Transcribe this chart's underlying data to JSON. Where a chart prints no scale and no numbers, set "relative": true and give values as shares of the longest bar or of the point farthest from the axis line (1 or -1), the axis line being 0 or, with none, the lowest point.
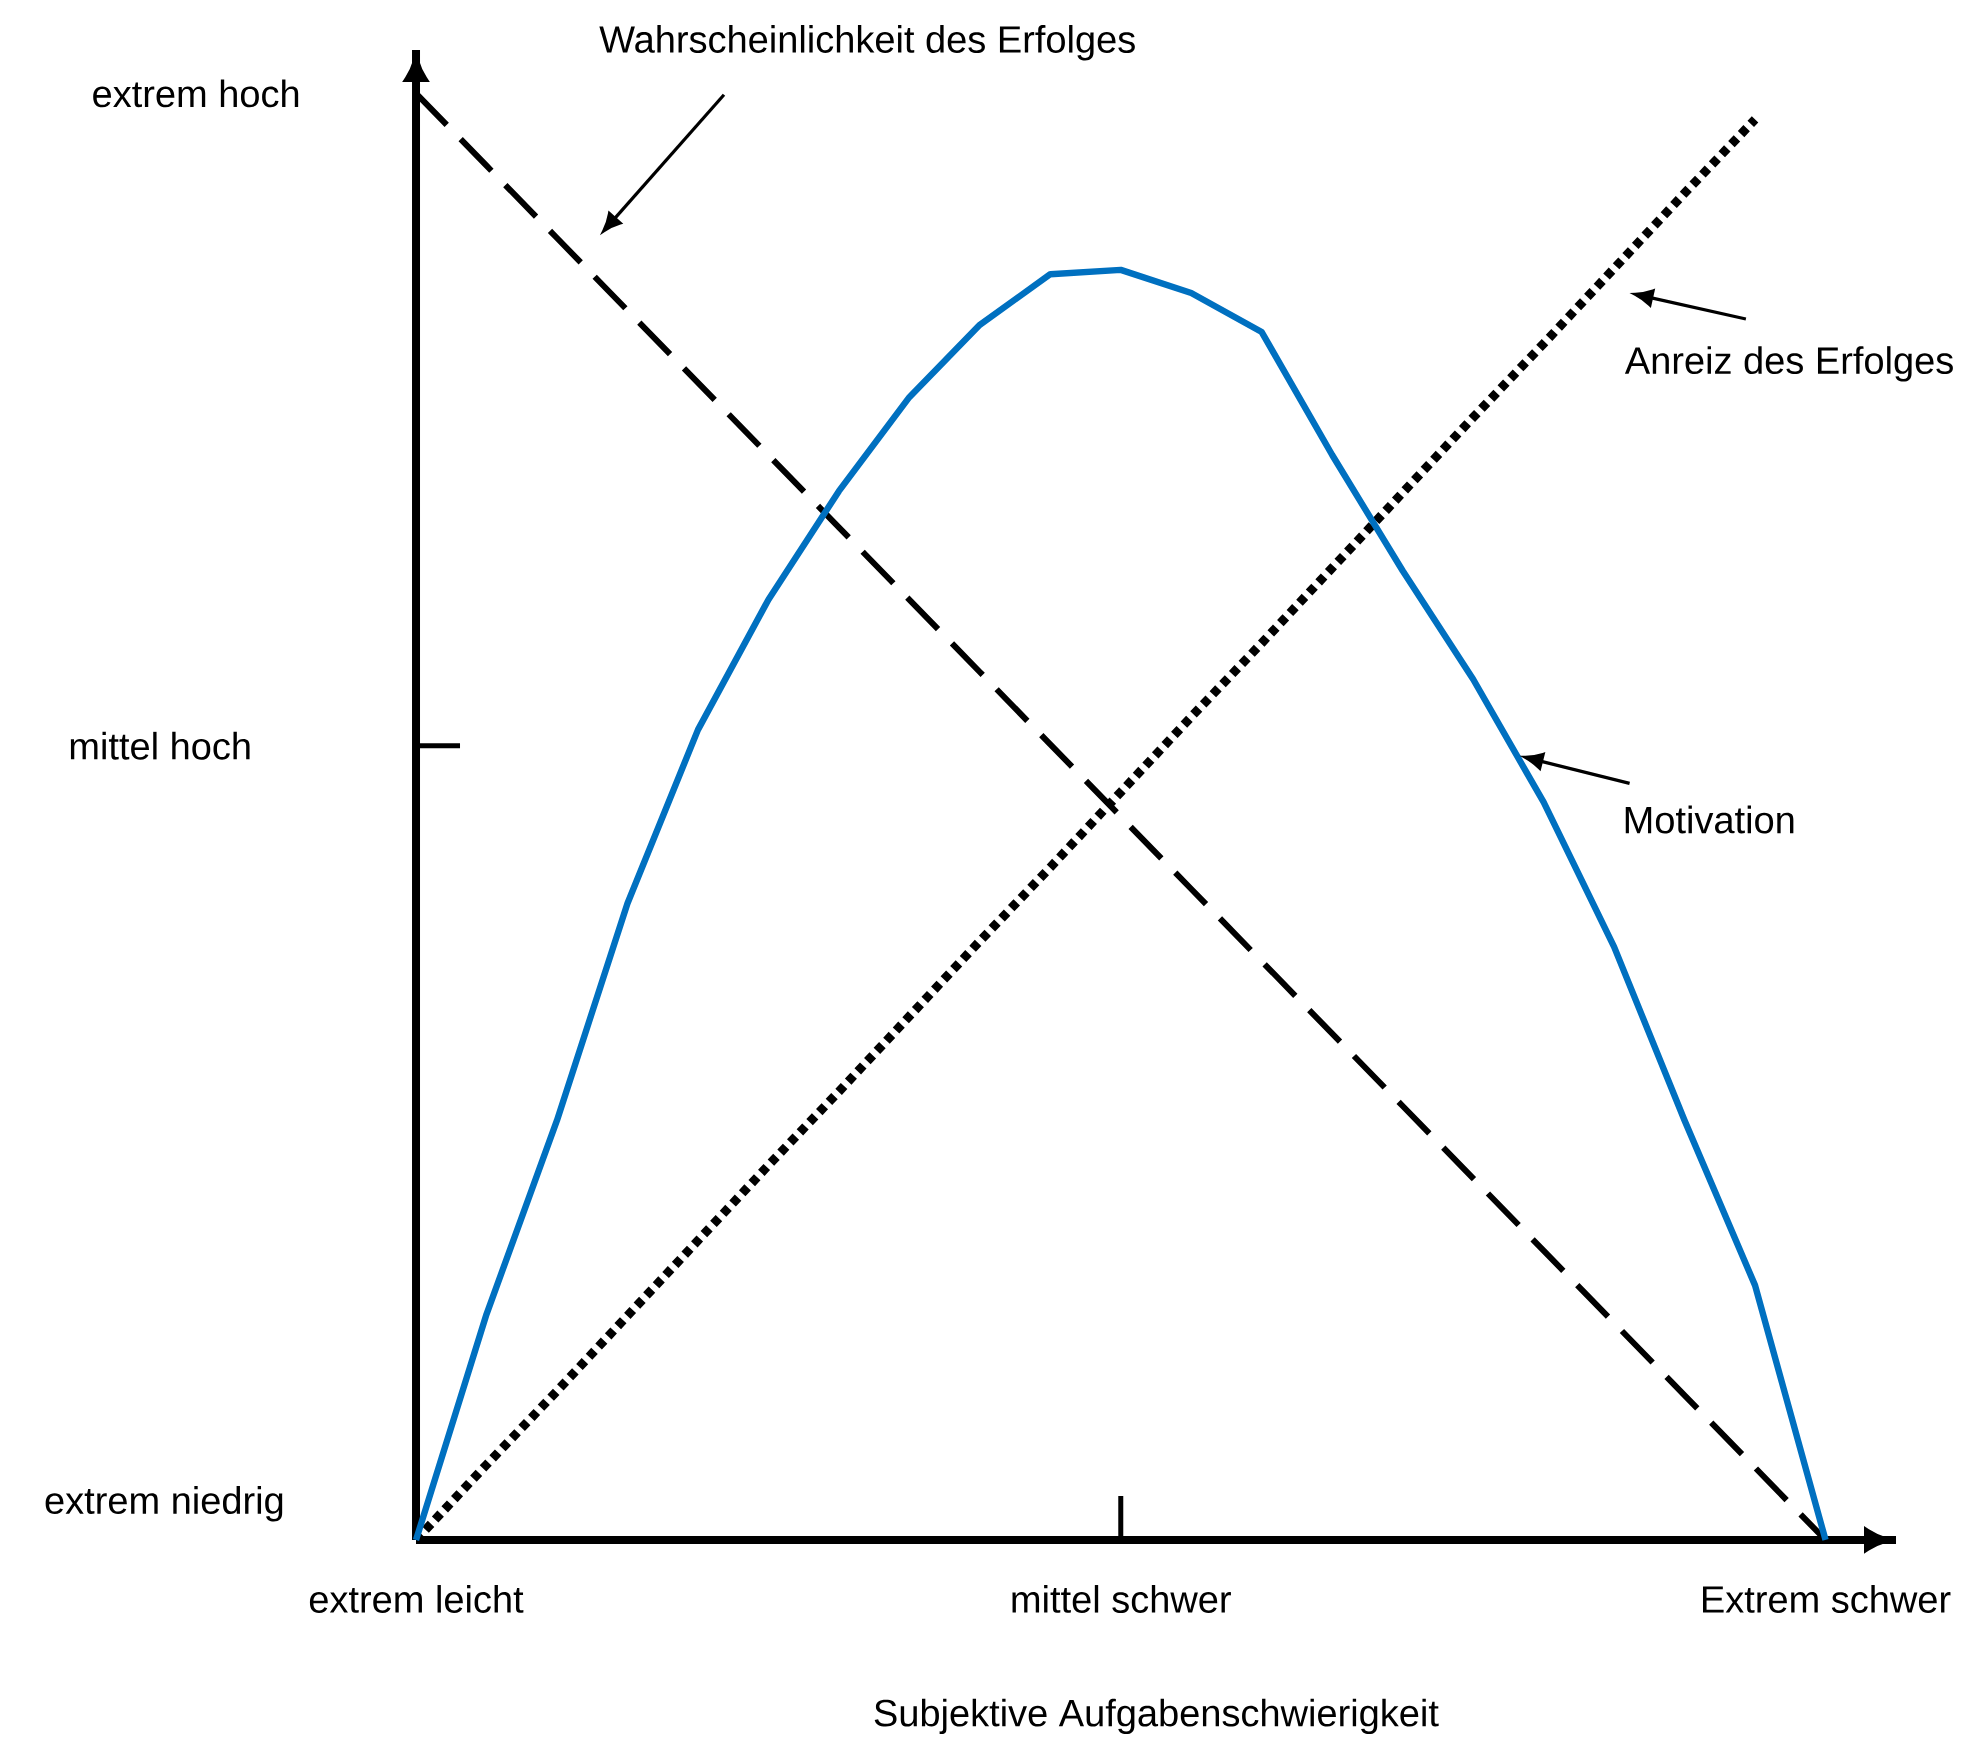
{
  "chart_data": {
    "type": "line",
    "relative": true,
    "xlabel": "Subjektive Aufgabenschwierigkeit",
    "categories": [
      "extrem leicht",
      null,
      null,
      null,
      null,
      null,
      null,
      null,
      null,
      null,
      "mittel schwer",
      null,
      null,
      null,
      null,
      null,
      null,
      null,
      null,
      null,
      "Extrem schwer"
    ],
    "marker": "none",
    "series": [
      {
        "color": "#000000",
        "line_style": "dashed",
        "values": [
          1,
          0.95,
          0.9,
          0.85,
          0.8,
          0.75,
          0.7,
          0.65,
          0.6,
          0.55,
          0.5,
          0.45,
          0.4,
          0.35,
          0.3,
          0.25,
          0.2,
          0.15,
          0.1,
          0.05,
          0
        ]
      },
      {
        "color": "#000000",
        "line_style": "dotted",
        "values": [
          0,
          0.052,
          0.103,
          0.155,
          0.207,
          0.259,
          0.31,
          0.362,
          0.414,
          0.465,
          0.517,
          0.569,
          0.62,
          0.672,
          0.724,
          0.776,
          0.827,
          0.879,
          0.931,
          0.982,
          null
        ]
      },
      {
        "color": "#0070c0",
        "line_style": "solid",
        "values": [
          0,
          0.156,
          0.29,
          0.44,
          0.56,
          0.65,
          0.725,
          0.79,
          0.84,
          0.875,
          0.878,
          0.862,
          0.835,
          0.75,
          0.67,
          0.595,
          0.51,
          0.41,
          0.29,
          0.176,
          0
        ]
      }
    ],
    "annotations": [
      "Wahrscheinlichkeit des Erfolges",
      "Anreiz des Erfolges",
      "Motivation",
      "extrem hoch",
      "mittel hoch",
      "extrem niedrig"
    ]
  }
}
